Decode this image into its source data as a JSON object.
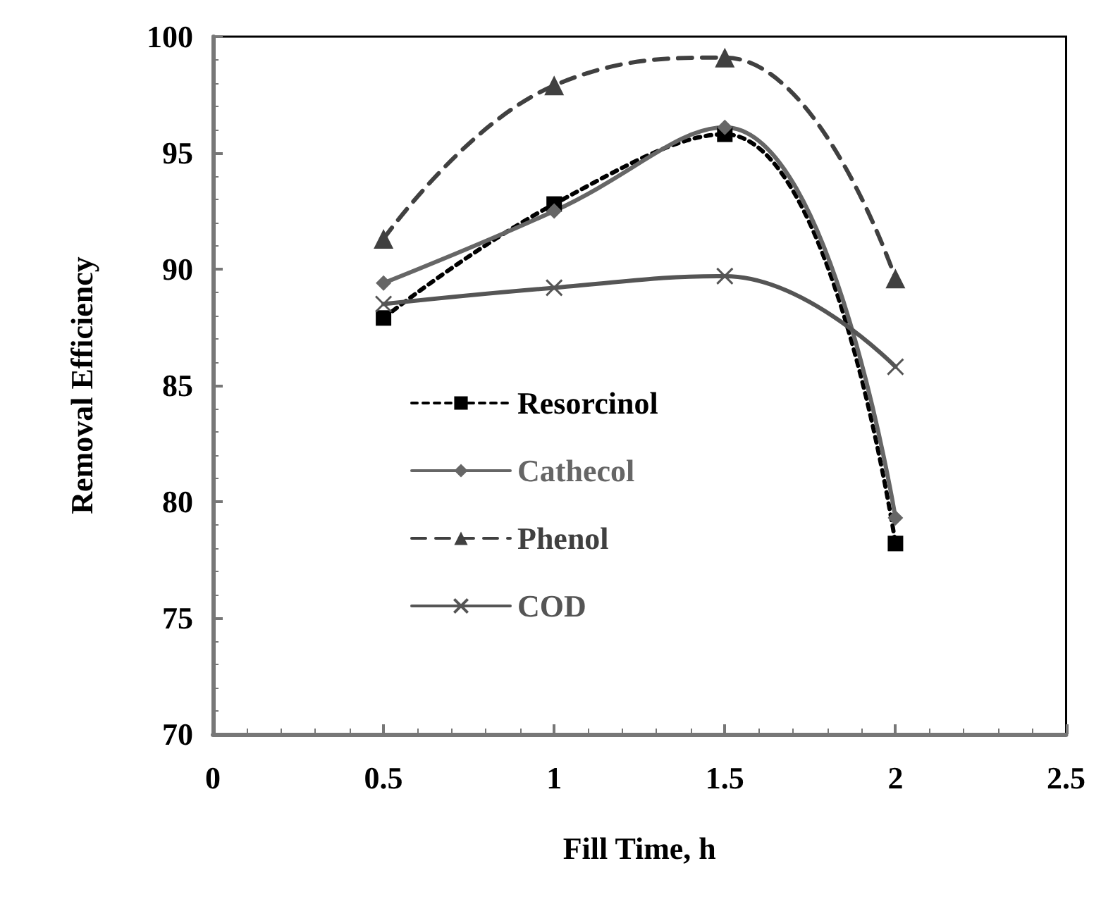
{
  "chart_data": {
    "type": "line",
    "xlabel": "Fill Time, h",
    "ylabel": "Removal Efficiency",
    "x": [
      0.5,
      1,
      1.5,
      2
    ],
    "series": [
      {
        "name": "Resorcinol",
        "color": "#000000",
        "marker": "square",
        "line_style": "dotted",
        "values": [
          87.9,
          92.8,
          95.8,
          78.2
        ]
      },
      {
        "name": "Cathecol",
        "color": "#666666",
        "marker": "diamond",
        "line_style": "solid",
        "values": [
          89.4,
          92.5,
          96.1,
          79.3
        ]
      },
      {
        "name": "Phenol",
        "color": "#404040",
        "marker": "triangle",
        "line_style": "dashed",
        "values": [
          91.3,
          97.9,
          99.1,
          89.6
        ]
      },
      {
        "name": "COD",
        "color": "#555555",
        "marker": "cross",
        "line_style": "solid",
        "values": [
          88.5,
          89.2,
          89.7,
          85.8
        ]
      }
    ],
    "xlim": [
      0,
      2.5
    ],
    "xticks": [
      0,
      0.5,
      1,
      1.5,
      2,
      2.5
    ],
    "ylim": [
      70,
      100
    ],
    "yticks": [
      70,
      75,
      80,
      85,
      90,
      95,
      100
    ],
    "grid": false,
    "legend": "left"
  }
}
